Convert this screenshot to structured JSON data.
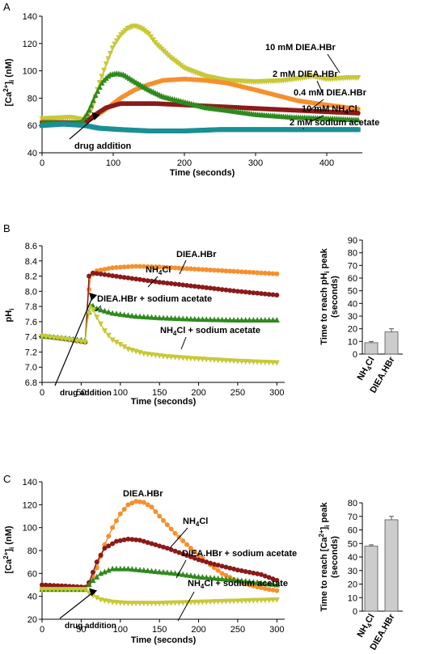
{
  "colors": {
    "yellow": "#c8c83a",
    "orange": "#f5902e",
    "darkred": "#8b1a1a",
    "green": "#2f8a1e",
    "teal": "#1a8f96",
    "bar_fill": "#cccccc",
    "axis": "#000000"
  },
  "chart_data": [
    {
      "id": "A",
      "type": "line",
      "panel_label": "A",
      "xlabel": "Time (seconds)",
      "ylabel_parts": [
        "[Ca",
        "2+",
        "]",
        "i",
        " (nM)"
      ],
      "xlim": [
        0,
        450
      ],
      "ylim": [
        40,
        140
      ],
      "xticks": [
        0,
        100,
        200,
        300,
        400
      ],
      "yticks": [
        40,
        60,
        80,
        100,
        120,
        140
      ],
      "series": [
        {
          "name": "10 mM DIEA.HBr",
          "color": "yellow",
          "marker": "tri-down",
          "points": [
            [
              0,
              65
            ],
            [
              40,
              66
            ],
            [
              60,
              64
            ],
            [
              70,
              72
            ],
            [
              80,
              90
            ],
            [
              90,
              105
            ],
            [
              100,
              118
            ],
            [
              110,
              126
            ],
            [
              120,
              131
            ],
            [
              130,
              133
            ],
            [
              140,
              131
            ],
            [
              150,
              127
            ],
            [
              160,
              120
            ],
            [
              180,
              110
            ],
            [
              200,
              102
            ],
            [
              230,
              96
            ],
            [
              260,
              93
            ],
            [
              300,
              92
            ],
            [
              340,
              93
            ],
            [
              380,
              96
            ],
            [
              400,
              94
            ],
            [
              430,
              95
            ],
            [
              445,
              95
            ]
          ]
        },
        {
          "name": "2 mM DIEA.HBr",
          "color": "orange",
          "marker": "circle",
          "points": [
            [
              0,
              63
            ],
            [
              50,
              62
            ],
            [
              70,
              65
            ],
            [
              90,
              72
            ],
            [
              110,
              80
            ],
            [
              130,
              86
            ],
            [
              150,
              90
            ],
            [
              170,
              93
            ],
            [
              200,
              94
            ],
            [
              230,
              93
            ],
            [
              260,
              91
            ],
            [
              300,
              86
            ],
            [
              330,
              82
            ],
            [
              360,
              78
            ],
            [
              400,
              75
            ],
            [
              430,
              73
            ],
            [
              445,
              72
            ]
          ]
        },
        {
          "name": "0.4 mM DIEA.HBr",
          "color": "darkred",
          "marker": "circle",
          "points": [
            [
              0,
              62
            ],
            [
              60,
              62
            ],
            [
              75,
              68
            ],
            [
              90,
              73
            ],
            [
              110,
              76
            ],
            [
              130,
              76
            ],
            [
              160,
              76
            ],
            [
              200,
              75
            ],
            [
              240,
              74
            ],
            [
              280,
              73
            ],
            [
              320,
              72
            ],
            [
              360,
              71
            ],
            [
              400,
              70
            ],
            [
              445,
              69
            ]
          ]
        },
        {
          "name": "10 mM NH4Cl",
          "color": "green",
          "marker": "tri-up",
          "points": [
            [
              0,
              62
            ],
            [
              55,
              62
            ],
            [
              65,
              70
            ],
            [
              75,
              82
            ],
            [
              85,
              92
            ],
            [
              95,
              97
            ],
            [
              105,
              98
            ],
            [
              115,
              97
            ],
            [
              130,
              92
            ],
            [
              150,
              86
            ],
            [
              170,
              81
            ],
            [
              200,
              77
            ],
            [
              230,
              73
            ],
            [
              260,
              71
            ],
            [
              300,
              68
            ],
            [
              350,
              66
            ],
            [
              400,
              65
            ],
            [
              445,
              64
            ]
          ]
        },
        {
          "name": "2 mM sodium acetate",
          "color": "teal",
          "marker": "square",
          "points": [
            [
              0,
              60
            ],
            [
              30,
              61
            ],
            [
              60,
              60
            ],
            [
              80,
              58
            ],
            [
              110,
              57
            ],
            [
              150,
              56
            ],
            [
              200,
              56
            ],
            [
              250,
              57
            ],
            [
              300,
              57
            ],
            [
              350,
              57
            ],
            [
              400,
              57
            ],
            [
              445,
              57
            ]
          ]
        }
      ],
      "labels": [
        {
          "text": "10 mM DIEA.HBr",
          "series": "10 mM DIEA.HBr"
        },
        {
          "text": "2 mM DIEA.HBr",
          "series": "2 mM DIEA.HBr"
        },
        {
          "text": "0.4 mM DIEA.HBr",
          "series": "0.4 mM DIEA.HBr"
        },
        {
          "text_parts": [
            "10 mM NH",
            "4",
            "Cl"
          ],
          "series": "10 mM NH4Cl"
        },
        {
          "text": "2 mM sodium acetate",
          "series": "2 mM sodium acetate"
        }
      ],
      "annotation": "drug addition",
      "annotation_x": 70
    },
    {
      "id": "B",
      "type": "line",
      "panel_label": "B",
      "xlabel": "Time (seconds)",
      "ylabel_parts": [
        "pH",
        "i"
      ],
      "xlim": [
        0,
        310
      ],
      "ylim": [
        6.8,
        8.6
      ],
      "xticks": [
        0,
        50,
        100,
        150,
        200,
        250,
        300
      ],
      "yticks": [
        6.8,
        7.0,
        7.2,
        7.4,
        7.6,
        7.8,
        8.0,
        8.2,
        8.4,
        8.6
      ],
      "series": [
        {
          "name": "DIEA.HBr",
          "color": "orange",
          "marker": "circle",
          "points": [
            [
              0,
              7.41
            ],
            [
              30,
              7.37
            ],
            [
              55,
              7.33
            ],
            [
              58,
              7.85
            ],
            [
              62,
              8.2
            ],
            [
              70,
              8.27
            ],
            [
              90,
              8.31
            ],
            [
              120,
              8.33
            ],
            [
              150,
              8.32
            ],
            [
              200,
              8.29
            ],
            [
              250,
              8.26
            ],
            [
              300,
              8.23
            ]
          ]
        },
        {
          "name": "NH4Cl",
          "color": "darkred",
          "marker": "circle",
          "points": [
            [
              0,
              7.41
            ],
            [
              30,
              7.37
            ],
            [
              55,
              7.33
            ],
            [
              57,
              7.6
            ],
            [
              60,
              8.2
            ],
            [
              65,
              8.24
            ],
            [
              80,
              8.22
            ],
            [
              100,
              8.19
            ],
            [
              150,
              8.12
            ],
            [
              200,
              8.06
            ],
            [
              250,
              8.0
            ],
            [
              300,
              7.95
            ]
          ]
        },
        {
          "name": "DIEA.HBr + sodium acetate",
          "color": "green",
          "marker": "tri-up",
          "points": [
            [
              0,
              7.41
            ],
            [
              30,
              7.38
            ],
            [
              55,
              7.35
            ],
            [
              58,
              7.62
            ],
            [
              62,
              7.83
            ],
            [
              70,
              7.77
            ],
            [
              90,
              7.71
            ],
            [
              120,
              7.67
            ],
            [
              150,
              7.65
            ],
            [
              200,
              7.63
            ],
            [
              250,
              7.62
            ],
            [
              300,
              7.62
            ]
          ]
        },
        {
          "name": "NH4Cl + sodium acetate",
          "color": "yellow",
          "marker": "tri-down",
          "points": [
            [
              0,
              7.41
            ],
            [
              30,
              7.37
            ],
            [
              55,
              7.33
            ],
            [
              58,
              7.6
            ],
            [
              62,
              7.82
            ],
            [
              70,
              7.66
            ],
            [
              80,
              7.48
            ],
            [
              90,
              7.36
            ],
            [
              110,
              7.24
            ],
            [
              130,
              7.18
            ],
            [
              160,
              7.14
            ],
            [
              200,
              7.11
            ],
            [
              250,
              7.08
            ],
            [
              300,
              7.06
            ]
          ]
        }
      ],
      "labels": [
        {
          "text": "DIEA.HBr",
          "series": "DIEA.HBr"
        },
        {
          "text_parts": [
            "NH",
            "4",
            "Cl"
          ],
          "series": "NH4Cl"
        },
        {
          "text": "DIEA.HBr + sodium acetate",
          "series": "DIEA.HBr + sodium acetate"
        },
        {
          "text_parts": [
            "NH",
            "4",
            "Cl + sodium acetate"
          ],
          "series": "NH4Cl + sodium acetate"
        }
      ],
      "annotation": "drug addition",
      "annotation_x": 60
    },
    {
      "id": "C",
      "type": "line",
      "panel_label": "C",
      "xlabel": "Time (seconds)",
      "ylabel_parts": [
        "[Ca",
        "2+",
        "]",
        "i",
        " (nM)"
      ],
      "xlim": [
        0,
        310
      ],
      "ylim": [
        20,
        140
      ],
      "xticks": [
        0,
        50,
        100,
        150,
        200,
        250,
        300
      ],
      "yticks": [
        20,
        40,
        60,
        80,
        100,
        120,
        140
      ],
      "series": [
        {
          "name": "DIEA.HBr",
          "color": "orange",
          "marker": "circle",
          "points": [
            [
              0,
              47
            ],
            [
              30,
              47
            ],
            [
              55,
              46
            ],
            [
              60,
              50
            ],
            [
              70,
              65
            ],
            [
              80,
              85
            ],
            [
              90,
              100
            ],
            [
              100,
              112
            ],
            [
              110,
              120
            ],
            [
              120,
              123
            ],
            [
              130,
              122
            ],
            [
              140,
              118
            ],
            [
              150,
              110
            ],
            [
              170,
              95
            ],
            [
              190,
              82
            ],
            [
              210,
              70
            ],
            [
              230,
              60
            ],
            [
              250,
              53
            ],
            [
              270,
              49
            ],
            [
              290,
              46
            ],
            [
              300,
              45
            ]
          ]
        },
        {
          "name": "NH4Cl",
          "color": "darkred",
          "marker": "circle",
          "points": [
            [
              0,
              50
            ],
            [
              30,
              49
            ],
            [
              55,
              48
            ],
            [
              60,
              52
            ],
            [
              70,
              70
            ],
            [
              80,
              82
            ],
            [
              95,
              88
            ],
            [
              110,
              90
            ],
            [
              125,
              89
            ],
            [
              140,
              86
            ],
            [
              160,
              82
            ],
            [
              180,
              77
            ],
            [
              200,
              72
            ],
            [
              220,
              68
            ],
            [
              250,
              63
            ],
            [
              280,
              59
            ],
            [
              300,
              54
            ]
          ]
        },
        {
          "name": "DIEA.HBr + sodium acetate",
          "color": "green",
          "marker": "tri-up",
          "points": [
            [
              0,
              46
            ],
            [
              30,
              46
            ],
            [
              55,
              46
            ],
            [
              62,
              52
            ],
            [
              75,
              60
            ],
            [
              90,
              64
            ],
            [
              110,
              64
            ],
            [
              140,
              62
            ],
            [
              170,
              60
            ],
            [
              200,
              57
            ],
            [
              250,
              54
            ],
            [
              300,
              50
            ]
          ]
        },
        {
          "name": "NH4Cl + sodium acetate",
          "color": "yellow",
          "marker": "tri-down",
          "points": [
            [
              0,
              46
            ],
            [
              30,
              46
            ],
            [
              55,
              46
            ],
            [
              62,
              42
            ],
            [
              75,
              37
            ],
            [
              90,
              35
            ],
            [
              110,
              34
            ],
            [
              150,
              34
            ],
            [
              200,
              35
            ],
            [
              250,
              36
            ],
            [
              300,
              37
            ]
          ]
        }
      ],
      "labels": [
        {
          "text": "DIEA.HBr",
          "series": "DIEA.HBr"
        },
        {
          "text_parts": [
            "NH",
            "4",
            "Cl"
          ],
          "series": "NH4Cl"
        },
        {
          "text": "DIEA.HBr + sodium acetate",
          "series": "DIEA.HBr + sodium acetate"
        },
        {
          "text_parts": [
            "NH",
            "4",
            "Cl + sodium acetate"
          ],
          "series": "NH4Cl + sodium acetate"
        }
      ],
      "annotation": "drug addition",
      "annotation_x": 60
    },
    {
      "id": "B-inset",
      "type": "bar",
      "ylabel_line1": "Time to reach pH",
      "ylabel_line1_sub": "i",
      "ylabel_line1_tail": " peak",
      "ylabel_line2": "(seconds)",
      "ylim": [
        0,
        90
      ],
      "yticks": [
        0,
        10,
        20,
        30,
        40,
        50,
        60,
        70,
        80,
        90
      ],
      "categories": [
        "NH4Cl",
        "DIEA.HBr"
      ],
      "category_parts": [
        [
          "NH",
          "4",
          "Cl"
        ],
        [
          "DIEA.HBr"
        ]
      ],
      "values": [
        9,
        17.5
      ],
      "errors": [
        1,
        2.5
      ]
    },
    {
      "id": "C-inset",
      "type": "bar",
      "ylabel_line1": "Time to reach [Ca",
      "ylabel_line1_sup": "2+",
      "ylabel_line1_mid": "]",
      "ylabel_line1_sub": "i",
      "ylabel_line1_tail": " peak",
      "ylabel_line2": "(seconds)",
      "ylim": [
        0,
        80
      ],
      "yticks": [
        0,
        10,
        20,
        30,
        40,
        50,
        60,
        70,
        80
      ],
      "categories": [
        "NH4Cl",
        "DIEA.HBr"
      ],
      "category_parts": [
        [
          "NH",
          "4",
          "Cl"
        ],
        [
          "DIEA.HBr"
        ]
      ],
      "values": [
        48,
        67.5
      ],
      "errors": [
        1,
        2.5
      ]
    }
  ]
}
